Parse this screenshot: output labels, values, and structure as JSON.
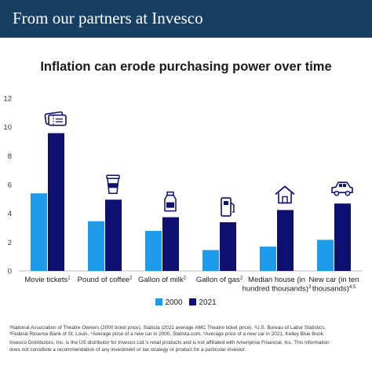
{
  "banner": {
    "title": "From our partners at Invesco"
  },
  "colors": {
    "banner_bg": "#173f63",
    "series_2000": "#1e9bea",
    "series_2021": "#0d1070",
    "axis": "#bdbdbd"
  },
  "chart_data": {
    "type": "bar",
    "title": "Inflation can erode purchasing power over time",
    "xlabel": "",
    "ylabel": "",
    "ylim": [
      0,
      12
    ],
    "yticks": [
      0,
      2,
      4,
      6,
      8,
      10,
      12
    ],
    "grid": false,
    "legend_position": "bottom",
    "categories": [
      {
        "lines": [
          "Movie tickets"
        ],
        "sup": "1",
        "icon": "ticket-icon"
      },
      {
        "lines": [
          "Pound of coffee"
        ],
        "sup": "2",
        "icon": "coffee-cup-icon"
      },
      {
        "lines": [
          "Gallon of milk"
        ],
        "sup": "2",
        "icon": "milk-bottle-icon"
      },
      {
        "lines": [
          "Gallon of gas"
        ],
        "sup": "2",
        "icon": "gas-pump-icon"
      },
      {
        "lines": [
          "Median house (in",
          "hundred thousands)"
        ],
        "sup": "3",
        "icon": "house-icon"
      },
      {
        "lines": [
          "New car (in ten",
          "thousands)"
        ],
        "sup": "4,5",
        "icon": "car-icon"
      }
    ],
    "series": [
      {
        "name": "2000",
        "color": "#1e9bea",
        "values": [
          5.39,
          3.45,
          2.78,
          1.45,
          1.69,
          2.16
        ]
      },
      {
        "name": "2021",
        "color": "#0d1070",
        "values": [
          9.57,
          4.95,
          3.73,
          3.38,
          4.23,
          4.68
        ]
      }
    ]
  },
  "footnotes": [
    "¹National Association of Theatre Owners (2000 ticket price), Statista (2021 average AMC Theatre ticket price). ²U.S. Bureau of Labor Statistics.",
    "³Federal Reserve Bank of St. Louis. ⁴Average price of a new car in 2000, Statista.com. ⁵Average price of a new car in 2021, Kelley Blue Book.",
    "Invesco Distributors, Inc. is the US distributor for Invesco Ltd.'s retail products and is not affiliated with Ameriprise Financial, Inc. This information",
    "does not constitute a recommendation of any investment or tax strategy or product for a particular investor."
  ]
}
